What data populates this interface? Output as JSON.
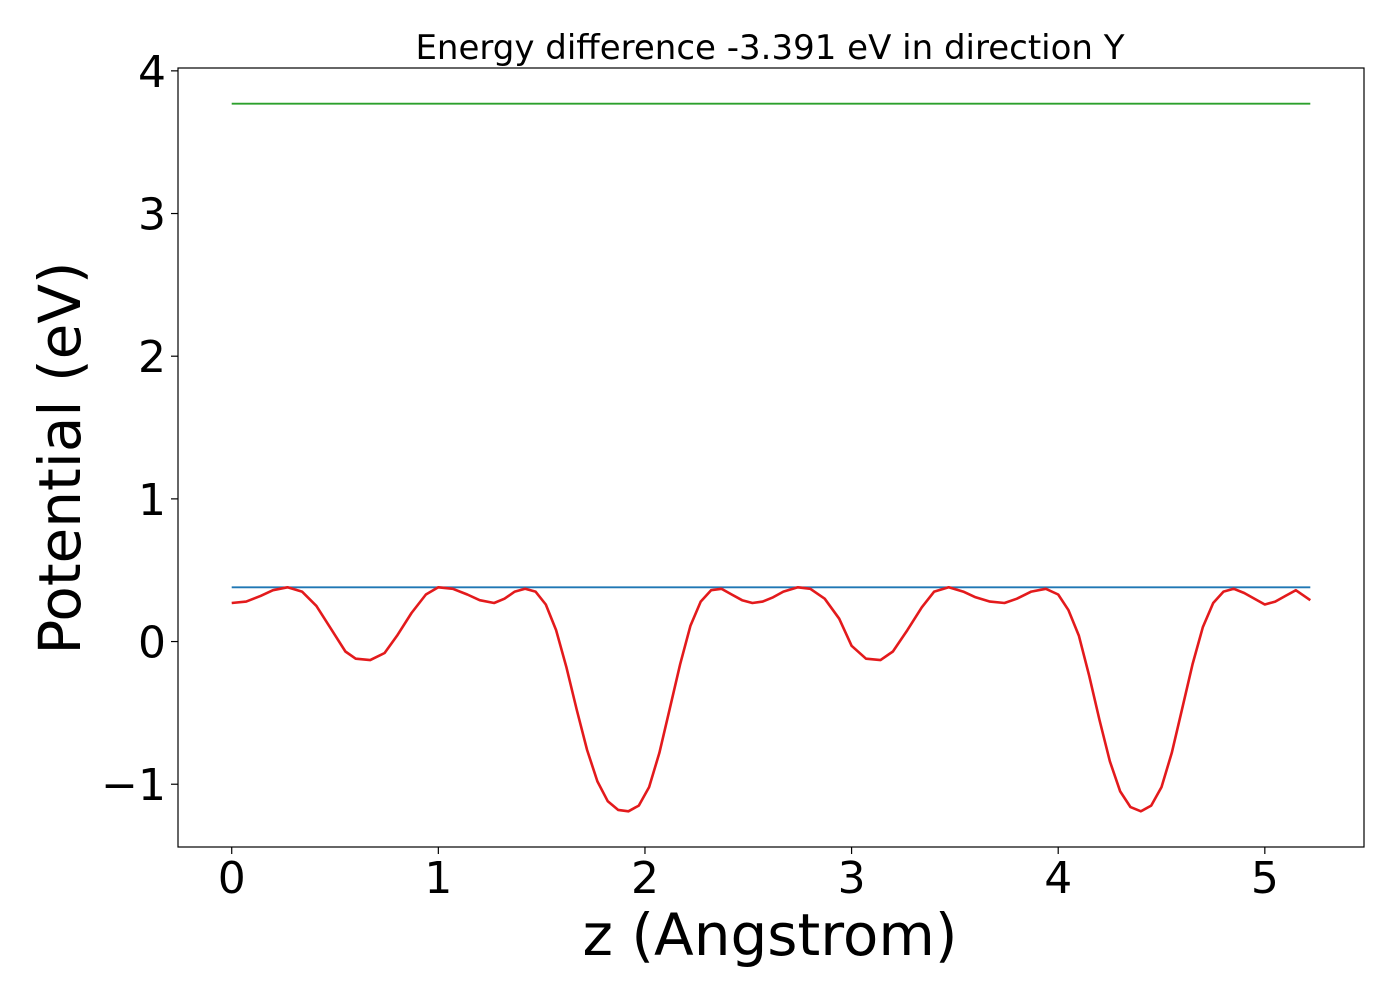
{
  "chart_data": {
    "type": "line",
    "title": "Energy difference -3.391 eV in direction Y",
    "xlabel": "z (Angstrom)",
    "ylabel": "Potential (eV)",
    "xlim": [
      -0.26,
      5.48
    ],
    "ylim": [
      -1.44,
      4.02
    ],
    "xticks": [
      0,
      1,
      2,
      3,
      4,
      5
    ],
    "xtick_labels": [
      "0",
      "1",
      "2",
      "3",
      "4",
      "5"
    ],
    "yticks": [
      -1,
      0,
      1,
      2,
      3,
      4
    ],
    "ytick_labels": [
      "−1",
      "0",
      "1",
      "2",
      "3",
      "4"
    ],
    "grid": false,
    "series": [
      {
        "color": "#2ca02c",
        "style": "horizontal",
        "x": [
          0,
          5.22
        ],
        "y": [
          3.77,
          3.77
        ]
      },
      {
        "color": "#1f77b4",
        "style": "horizontal",
        "x": [
          0,
          5.22
        ],
        "y": [
          0.38,
          0.38
        ]
      },
      {
        "color": "#e31a1c",
        "style": "curve",
        "x": [
          0,
          0.07,
          0.14,
          0.2,
          0.27,
          0.34,
          0.41,
          0.48,
          0.55,
          0.6,
          0.67,
          0.74,
          0.8,
          0.87,
          0.94,
          1.0,
          1.07,
          1.14,
          1.2,
          1.27,
          1.32,
          1.37,
          1.42,
          1.47,
          1.52,
          1.57,
          1.62,
          1.67,
          1.72,
          1.77,
          1.82,
          1.87,
          1.92,
          1.97,
          2.02,
          2.07,
          2.12,
          2.17,
          2.22,
          2.27,
          2.32,
          2.37,
          2.42,
          2.47,
          2.52,
          2.57,
          2.62,
          2.67,
          2.74,
          2.8,
          2.87,
          2.94,
          3.0,
          3.07,
          3.14,
          3.2,
          3.27,
          3.34,
          3.4,
          3.47,
          3.54,
          3.6,
          3.67,
          3.74,
          3.8,
          3.87,
          3.94,
          4.0,
          4.05,
          4.1,
          4.15,
          4.2,
          4.25,
          4.3,
          4.35,
          4.4,
          4.45,
          4.5,
          4.55,
          4.6,
          4.65,
          4.7,
          4.75,
          4.8,
          4.85,
          4.9,
          4.95,
          5.0,
          5.05,
          5.1,
          5.15,
          5.22
        ],
        "y": [
          0.27,
          0.28,
          0.32,
          0.36,
          0.38,
          0.35,
          0.25,
          0.09,
          -0.07,
          -0.12,
          -0.13,
          -0.08,
          0.04,
          0.2,
          0.33,
          0.38,
          0.37,
          0.33,
          0.29,
          0.27,
          0.3,
          0.35,
          0.37,
          0.35,
          0.26,
          0.08,
          -0.18,
          -0.48,
          -0.76,
          -0.98,
          -1.12,
          -1.18,
          -1.19,
          -1.15,
          -1.02,
          -0.78,
          -0.47,
          -0.16,
          0.11,
          0.28,
          0.36,
          0.37,
          0.33,
          0.29,
          0.27,
          0.28,
          0.31,
          0.35,
          0.38,
          0.37,
          0.3,
          0.16,
          -0.03,
          -0.12,
          -0.13,
          -0.07,
          0.08,
          0.24,
          0.35,
          0.38,
          0.35,
          0.31,
          0.28,
          0.27,
          0.3,
          0.35,
          0.37,
          0.33,
          0.22,
          0.04,
          -0.24,
          -0.55,
          -0.84,
          -1.05,
          -1.16,
          -1.19,
          -1.15,
          -1.02,
          -0.78,
          -0.47,
          -0.16,
          0.1,
          0.27,
          0.35,
          0.37,
          0.34,
          0.3,
          0.26,
          0.28,
          0.32,
          0.36,
          0.29
        ]
      }
    ]
  }
}
